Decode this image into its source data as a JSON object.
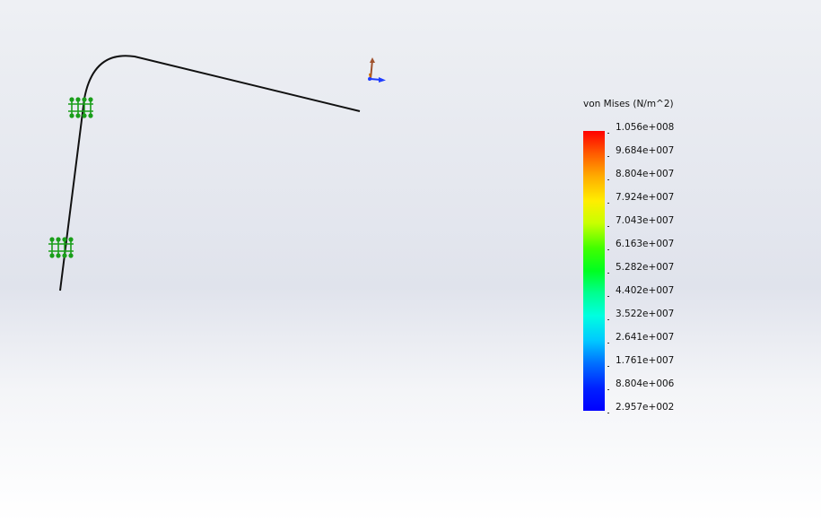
{
  "legend": {
    "title": "von Mises (N/m^2)",
    "labels": [
      "1.056e+008",
      "9.684e+007",
      "8.804e+007",
      "7.924e+007",
      "7.043e+007",
      "6.163e+007",
      "5.282e+007",
      "4.402e+007",
      "3.522e+007",
      "2.641e+007",
      "1.761e+007",
      "8.804e+006",
      "2.957e+002"
    ],
    "colormap_stops": [
      "#ff0000",
      "#ffee00",
      "#00ff20",
      "#00ffe0",
      "#0000ff"
    ]
  },
  "model": {
    "beam_color": "#111111",
    "fixture_color": "#1a9e1a",
    "triad_colors": {
      "x_axis": "#1f3cff",
      "y_axis": "#a0522d",
      "z_axis": "#cc6a00"
    }
  }
}
